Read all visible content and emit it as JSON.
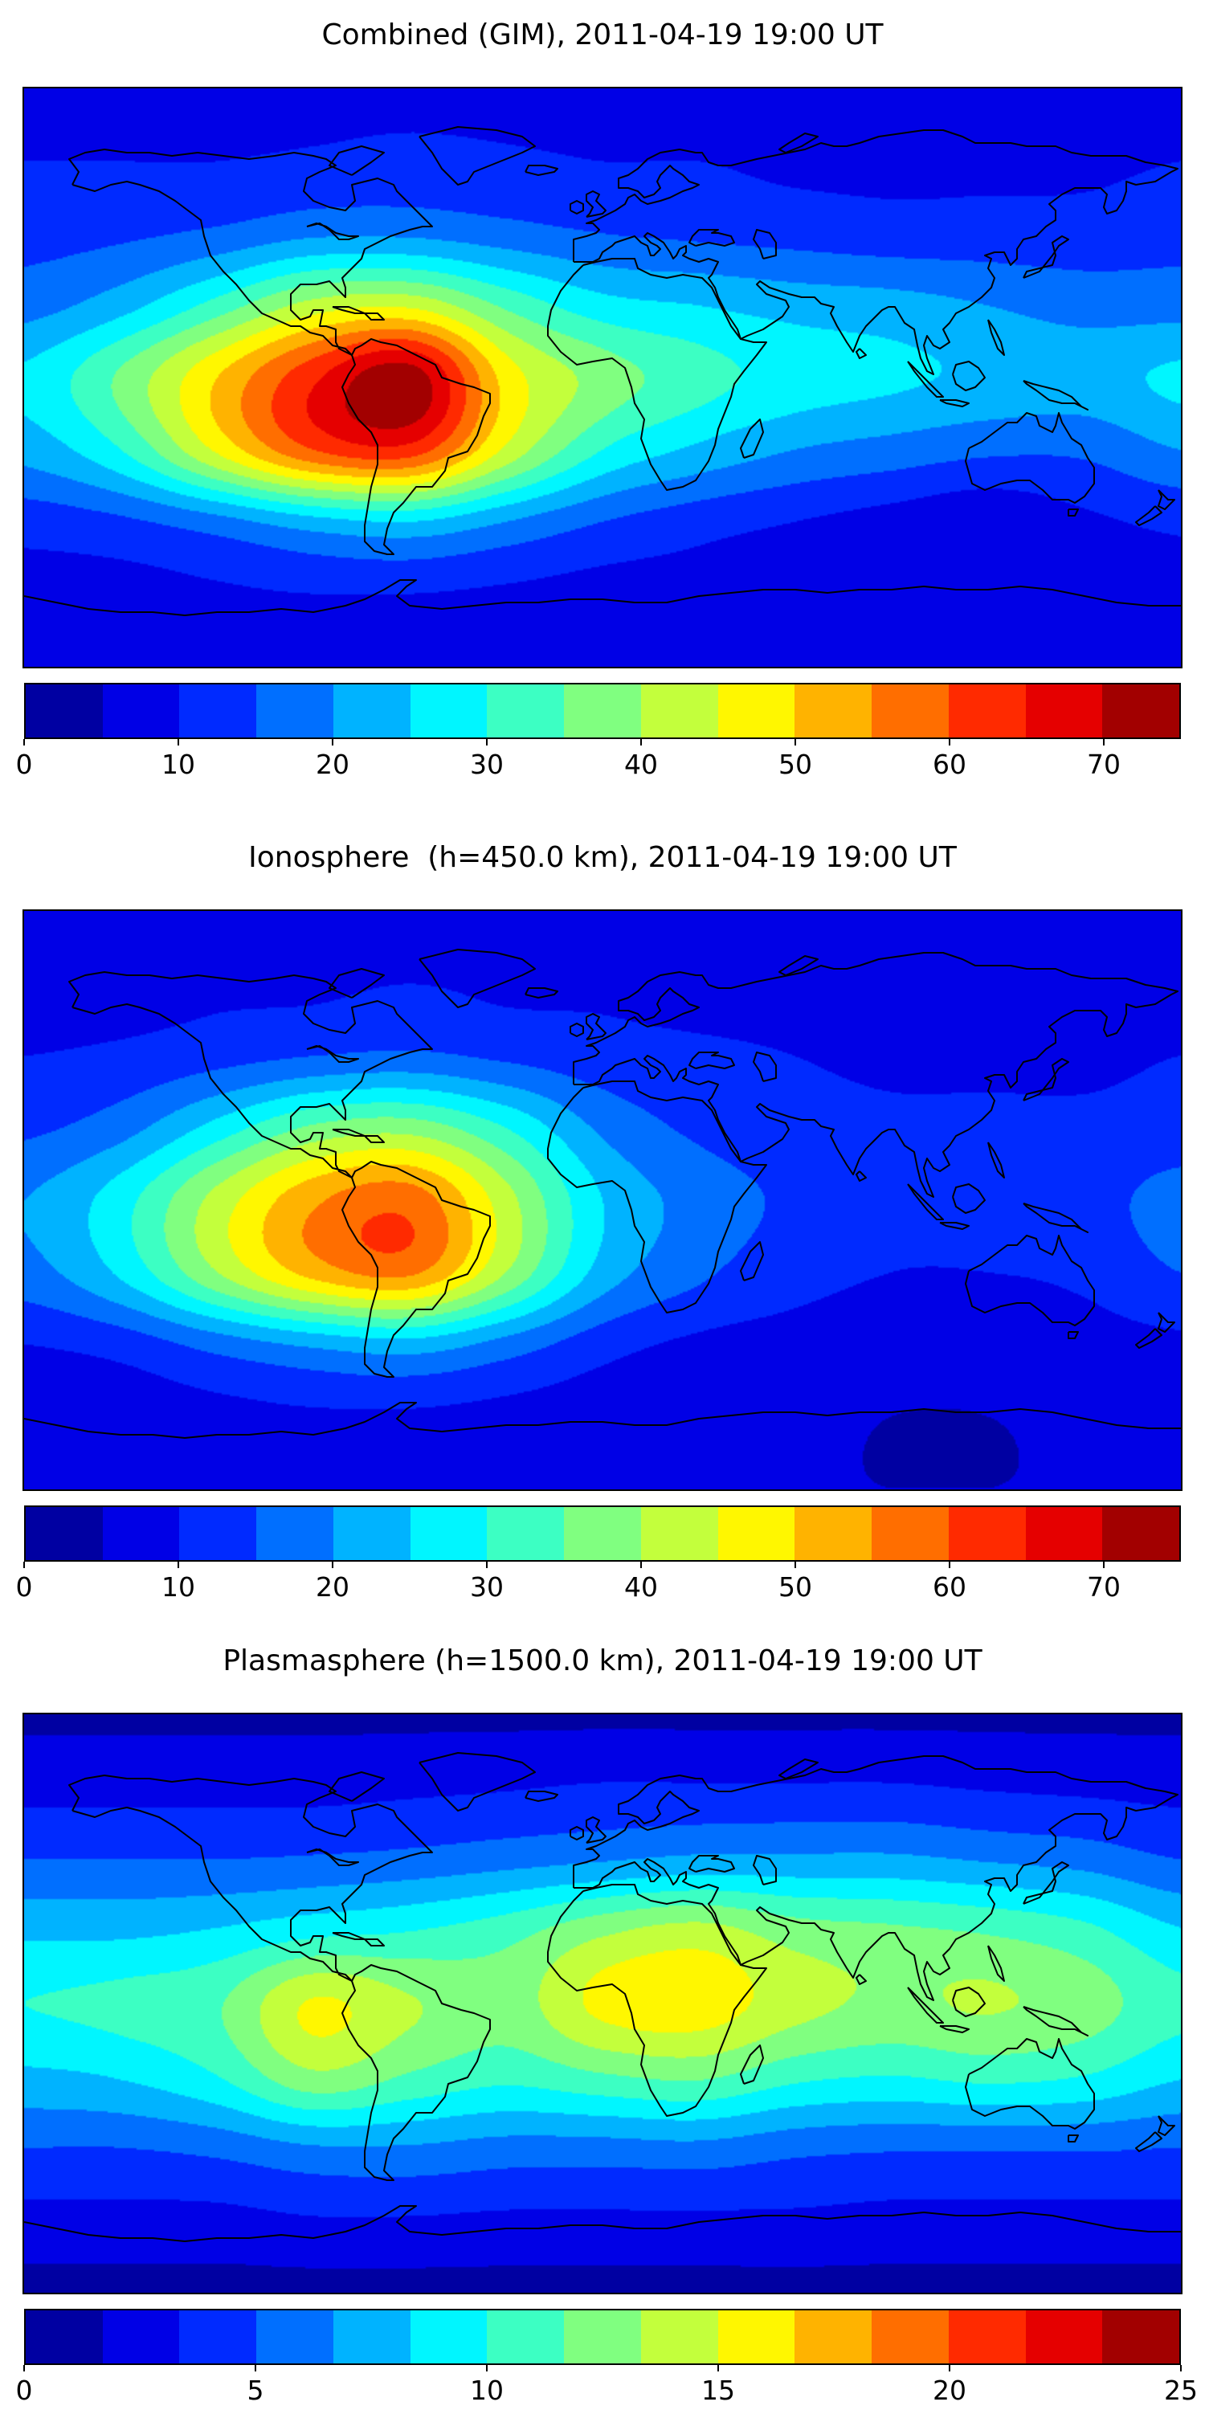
{
  "figure": {
    "background": "#ffffff",
    "frame_color": "#000000"
  },
  "panels": [
    {
      "id": "combined",
      "title": "Combined (GIM), 2011-04-19 19:00 UT",
      "colorbar": {
        "vmin": 0,
        "vmax": 75,
        "segments": 15,
        "tick_values": [
          0,
          10,
          20,
          30,
          40,
          50,
          60,
          70
        ],
        "tick_labels": [
          "0",
          "10",
          "20",
          "30",
          "40",
          "50",
          "60",
          "70"
        ]
      }
    },
    {
      "id": "ionosphere",
      "title": "Ionosphere  (h=450.0 km), 2011-04-19 19:00 UT",
      "colorbar": {
        "vmin": 0,
        "vmax": 75,
        "segments": 15,
        "tick_values": [
          0,
          10,
          20,
          30,
          40,
          50,
          60,
          70
        ],
        "tick_labels": [
          "0",
          "10",
          "20",
          "30",
          "40",
          "50",
          "60",
          "70"
        ]
      }
    },
    {
      "id": "plasmasphere",
      "title": "Plasmasphere (h=1500.0 km), 2011-04-19 19:00 UT",
      "colorbar": {
        "vmin": 0,
        "vmax": 25,
        "segments": 15,
        "tick_values": [
          0,
          5,
          10,
          15,
          20,
          25
        ],
        "tick_labels": [
          "0",
          "5",
          "10",
          "15",
          "20",
          "25"
        ]
      }
    }
  ],
  "chart_data": [
    {
      "type": "heatmap",
      "subtype": "filled_contour_world_map",
      "title": "Combined (GIM), 2011-04-19 19:00 UT",
      "colormap": "jet",
      "n_levels": 15,
      "vmin": 0,
      "vmax": 75,
      "colorbar_ticks": [
        0,
        10,
        20,
        30,
        40,
        50,
        60,
        70
      ],
      "overlay": "world coastlines",
      "lon": [
        -180,
        -150,
        -120,
        -90,
        -60,
        -30,
        0,
        30,
        60,
        90,
        120,
        150,
        180
      ],
      "lat": [
        90,
        67.5,
        45,
        22.5,
        0,
        -22.5,
        -45,
        -67.5,
        -90
      ],
      "values": [
        [
          8,
          8,
          8,
          8,
          8,
          8,
          8,
          8,
          8,
          8,
          8,
          8,
          8
        ],
        [
          10,
          10,
          10,
          11,
          12,
          11,
          10,
          10,
          9,
          9,
          9,
          9,
          10
        ],
        [
          13,
          14,
          16,
          19,
          19,
          17,
          15,
          14,
          13,
          12,
          12,
          12,
          13
        ],
        [
          18,
          23,
          32,
          42,
          44,
          34,
          27,
          25,
          23,
          22,
          20,
          18,
          18
        ],
        [
          26,
          36,
          50,
          64,
          73,
          48,
          38,
          32,
          28,
          26,
          24,
          23,
          26
        ],
        [
          22,
          30,
          46,
          60,
          63,
          44,
          30,
          24,
          20,
          18,
          16,
          16,
          20
        ],
        [
          12,
          14,
          18,
          23,
          25,
          20,
          15,
          12,
          10,
          8,
          6,
          9,
          11
        ],
        [
          8,
          8,
          9,
          10,
          10,
          9,
          8,
          8,
          7,
          6,
          6,
          7,
          8
        ],
        [
          6,
          6,
          6,
          6,
          6,
          6,
          6,
          6,
          6,
          6,
          6,
          6,
          6
        ]
      ]
    },
    {
      "type": "heatmap",
      "subtype": "filled_contour_world_map",
      "title": "Ionosphere  (h=450.0 km), 2011-04-19 19:00 UT",
      "colormap": "jet",
      "n_levels": 15,
      "vmin": 0,
      "vmax": 75,
      "colorbar_ticks": [
        0,
        10,
        20,
        30,
        40,
        50,
        60,
        70
      ],
      "overlay": "world coastlines",
      "lon": [
        -180,
        -150,
        -120,
        -90,
        -60,
        -30,
        0,
        30,
        60,
        90,
        120,
        150,
        180
      ],
      "lat": [
        90,
        67.5,
        45,
        22.5,
        0,
        -22.5,
        -45,
        -67.5,
        -90
      ],
      "values": [
        [
          7,
          7,
          7,
          7,
          7,
          7,
          7,
          7,
          7,
          7,
          7,
          7,
          7
        ],
        [
          8,
          8,
          9,
          9,
          10,
          9,
          9,
          8,
          8,
          8,
          8,
          8,
          8
        ],
        [
          10,
          11,
          13,
          15,
          16,
          14,
          12,
          11,
          10,
          9,
          9,
          9,
          10
        ],
        [
          14,
          18,
          27,
          36,
          38,
          30,
          19,
          14,
          12,
          11,
          11,
          11,
          12
        ],
        [
          20,
          28,
          42,
          54,
          58,
          42,
          25,
          18,
          14,
          12,
          12,
          13,
          17
        ],
        [
          18,
          26,
          40,
          52,
          56,
          40,
          23,
          16,
          12,
          10,
          10,
          11,
          15
        ],
        [
          10,
          12,
          17,
          21,
          23,
          18,
          12,
          9,
          8,
          7,
          7,
          8,
          9
        ],
        [
          7,
          7,
          8,
          9,
          9,
          8,
          7,
          6,
          6,
          5,
          5,
          6,
          7
        ],
        [
          5,
          5,
          5,
          5,
          5,
          5,
          5,
          5,
          5,
          5,
          5,
          5,
          5
        ]
      ]
    },
    {
      "type": "heatmap",
      "subtype": "filled_contour_world_map",
      "title": "Plasmasphere (h=1500.0 km), 2011-04-19 19:00 UT",
      "colormap": "jet",
      "n_levels": 15,
      "vmin": 0,
      "vmax": 25,
      "colorbar_ticks": [
        0,
        5,
        10,
        15,
        20,
        25
      ],
      "overlay": "world coastlines",
      "lon": [
        -180,
        -150,
        -120,
        -90,
        -60,
        -30,
        0,
        30,
        60,
        90,
        120,
        150,
        180
      ],
      "lat": [
        90,
        67.5,
        45,
        22.5,
        0,
        -22.5,
        -45,
        -67.5,
        -90
      ],
      "values": [
        [
          1.4,
          1.4,
          1.4,
          1.4,
          1.4,
          1.4,
          1.4,
          1.4,
          1.4,
          1.4,
          1.4,
          1.4,
          1.4
        ],
        [
          2.8,
          2.8,
          2.8,
          2.8,
          3,
          3.2,
          3.5,
          3.5,
          3.5,
          3.5,
          3.2,
          3,
          2.8
        ],
        [
          5,
          5,
          5,
          5.2,
          5.5,
          6,
          6.5,
          7,
          7,
          7,
          6.5,
          6,
          5
        ],
        [
          8,
          8,
          8.5,
          9.5,
          10,
          11,
          13,
          14,
          12.5,
          12,
          11.5,
          10.5,
          8.5
        ],
        [
          10,
          10.5,
          11.5,
          15.2,
          13.5,
          12.5,
          15.5,
          16,
          14,
          13,
          13.5,
          12.5,
          10.5
        ],
        [
          8,
          8.5,
          10,
          13,
          11.5,
          10.5,
          11.5,
          12,
          10.5,
          10,
          10.5,
          10,
          8.5
        ],
        [
          5,
          5,
          5.5,
          6.5,
          6.5,
          6,
          6,
          6.2,
          5.5,
          5.2,
          5.2,
          5.2,
          5
        ],
        [
          2.8,
          2.8,
          2.8,
          3.2,
          3.2,
          3,
          3,
          3,
          3,
          2.8,
          2.8,
          2.8,
          2.8
        ],
        [
          1.2,
          1.2,
          1.2,
          1.2,
          1.2,
          1.2,
          1.2,
          1.2,
          1.2,
          1.2,
          1.2,
          1.2,
          1.2
        ]
      ]
    }
  ]
}
